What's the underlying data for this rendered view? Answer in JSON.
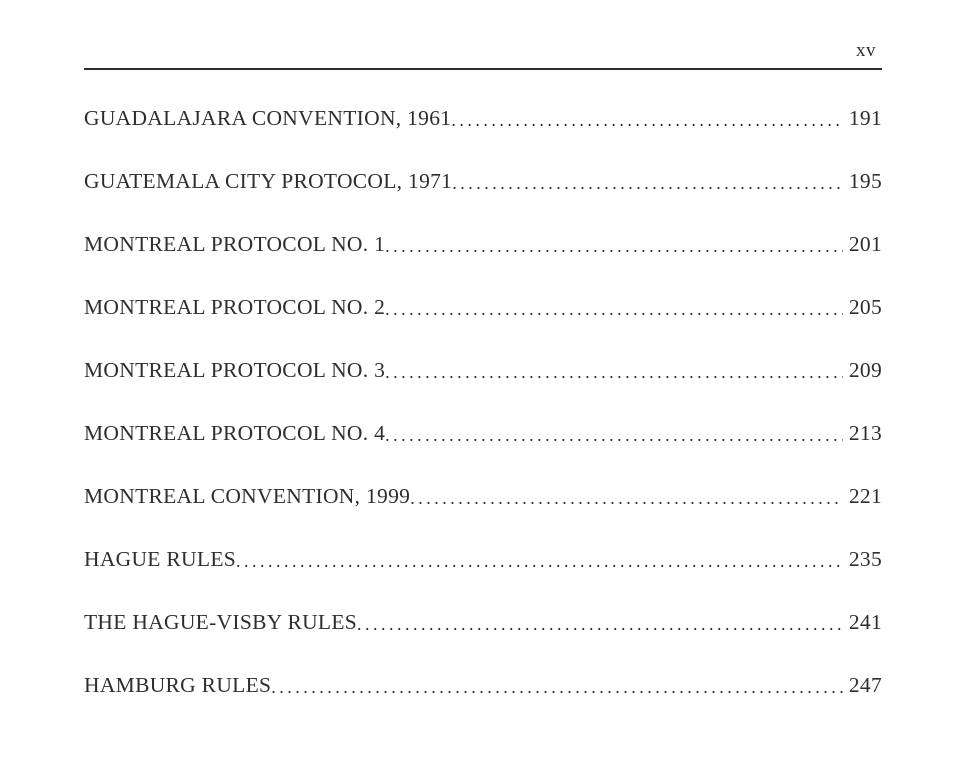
{
  "page_roman": "xv",
  "leader_char": "............................................................................................................................................................................................................",
  "entries": [
    {
      "title": "GUADALAJARA CONVENTION, 1961",
      "page": "191"
    },
    {
      "title": "GUATEMALA CITY PROTOCOL, 1971",
      "page": "195"
    },
    {
      "title": "MONTREAL PROTOCOL NO. 1",
      "page": "201"
    },
    {
      "title": "MONTREAL PROTOCOL NO. 2",
      "page": "205"
    },
    {
      "title": "MONTREAL PROTOCOL NO. 3",
      "page": "209"
    },
    {
      "title": "MONTREAL PROTOCOL NO. 4",
      "page": "213"
    },
    {
      "title": "MONTREAL CONVENTION, 1999",
      "page": "221"
    },
    {
      "title": "HAGUE RULES",
      "page": "235"
    },
    {
      "title": "THE HAGUE-VISBY RULES",
      "page": "241"
    },
    {
      "title": "HAMBURG RULES",
      "page": "247"
    }
  ],
  "colors": {
    "text": "#2e2e2e",
    "background": "#ffffff",
    "rule": "#2e2e2e"
  },
  "typography": {
    "entry_fontsize": 21.5,
    "page_num_fontsize": 19,
    "font_family": "Georgia, 'Times New Roman', serif"
  }
}
